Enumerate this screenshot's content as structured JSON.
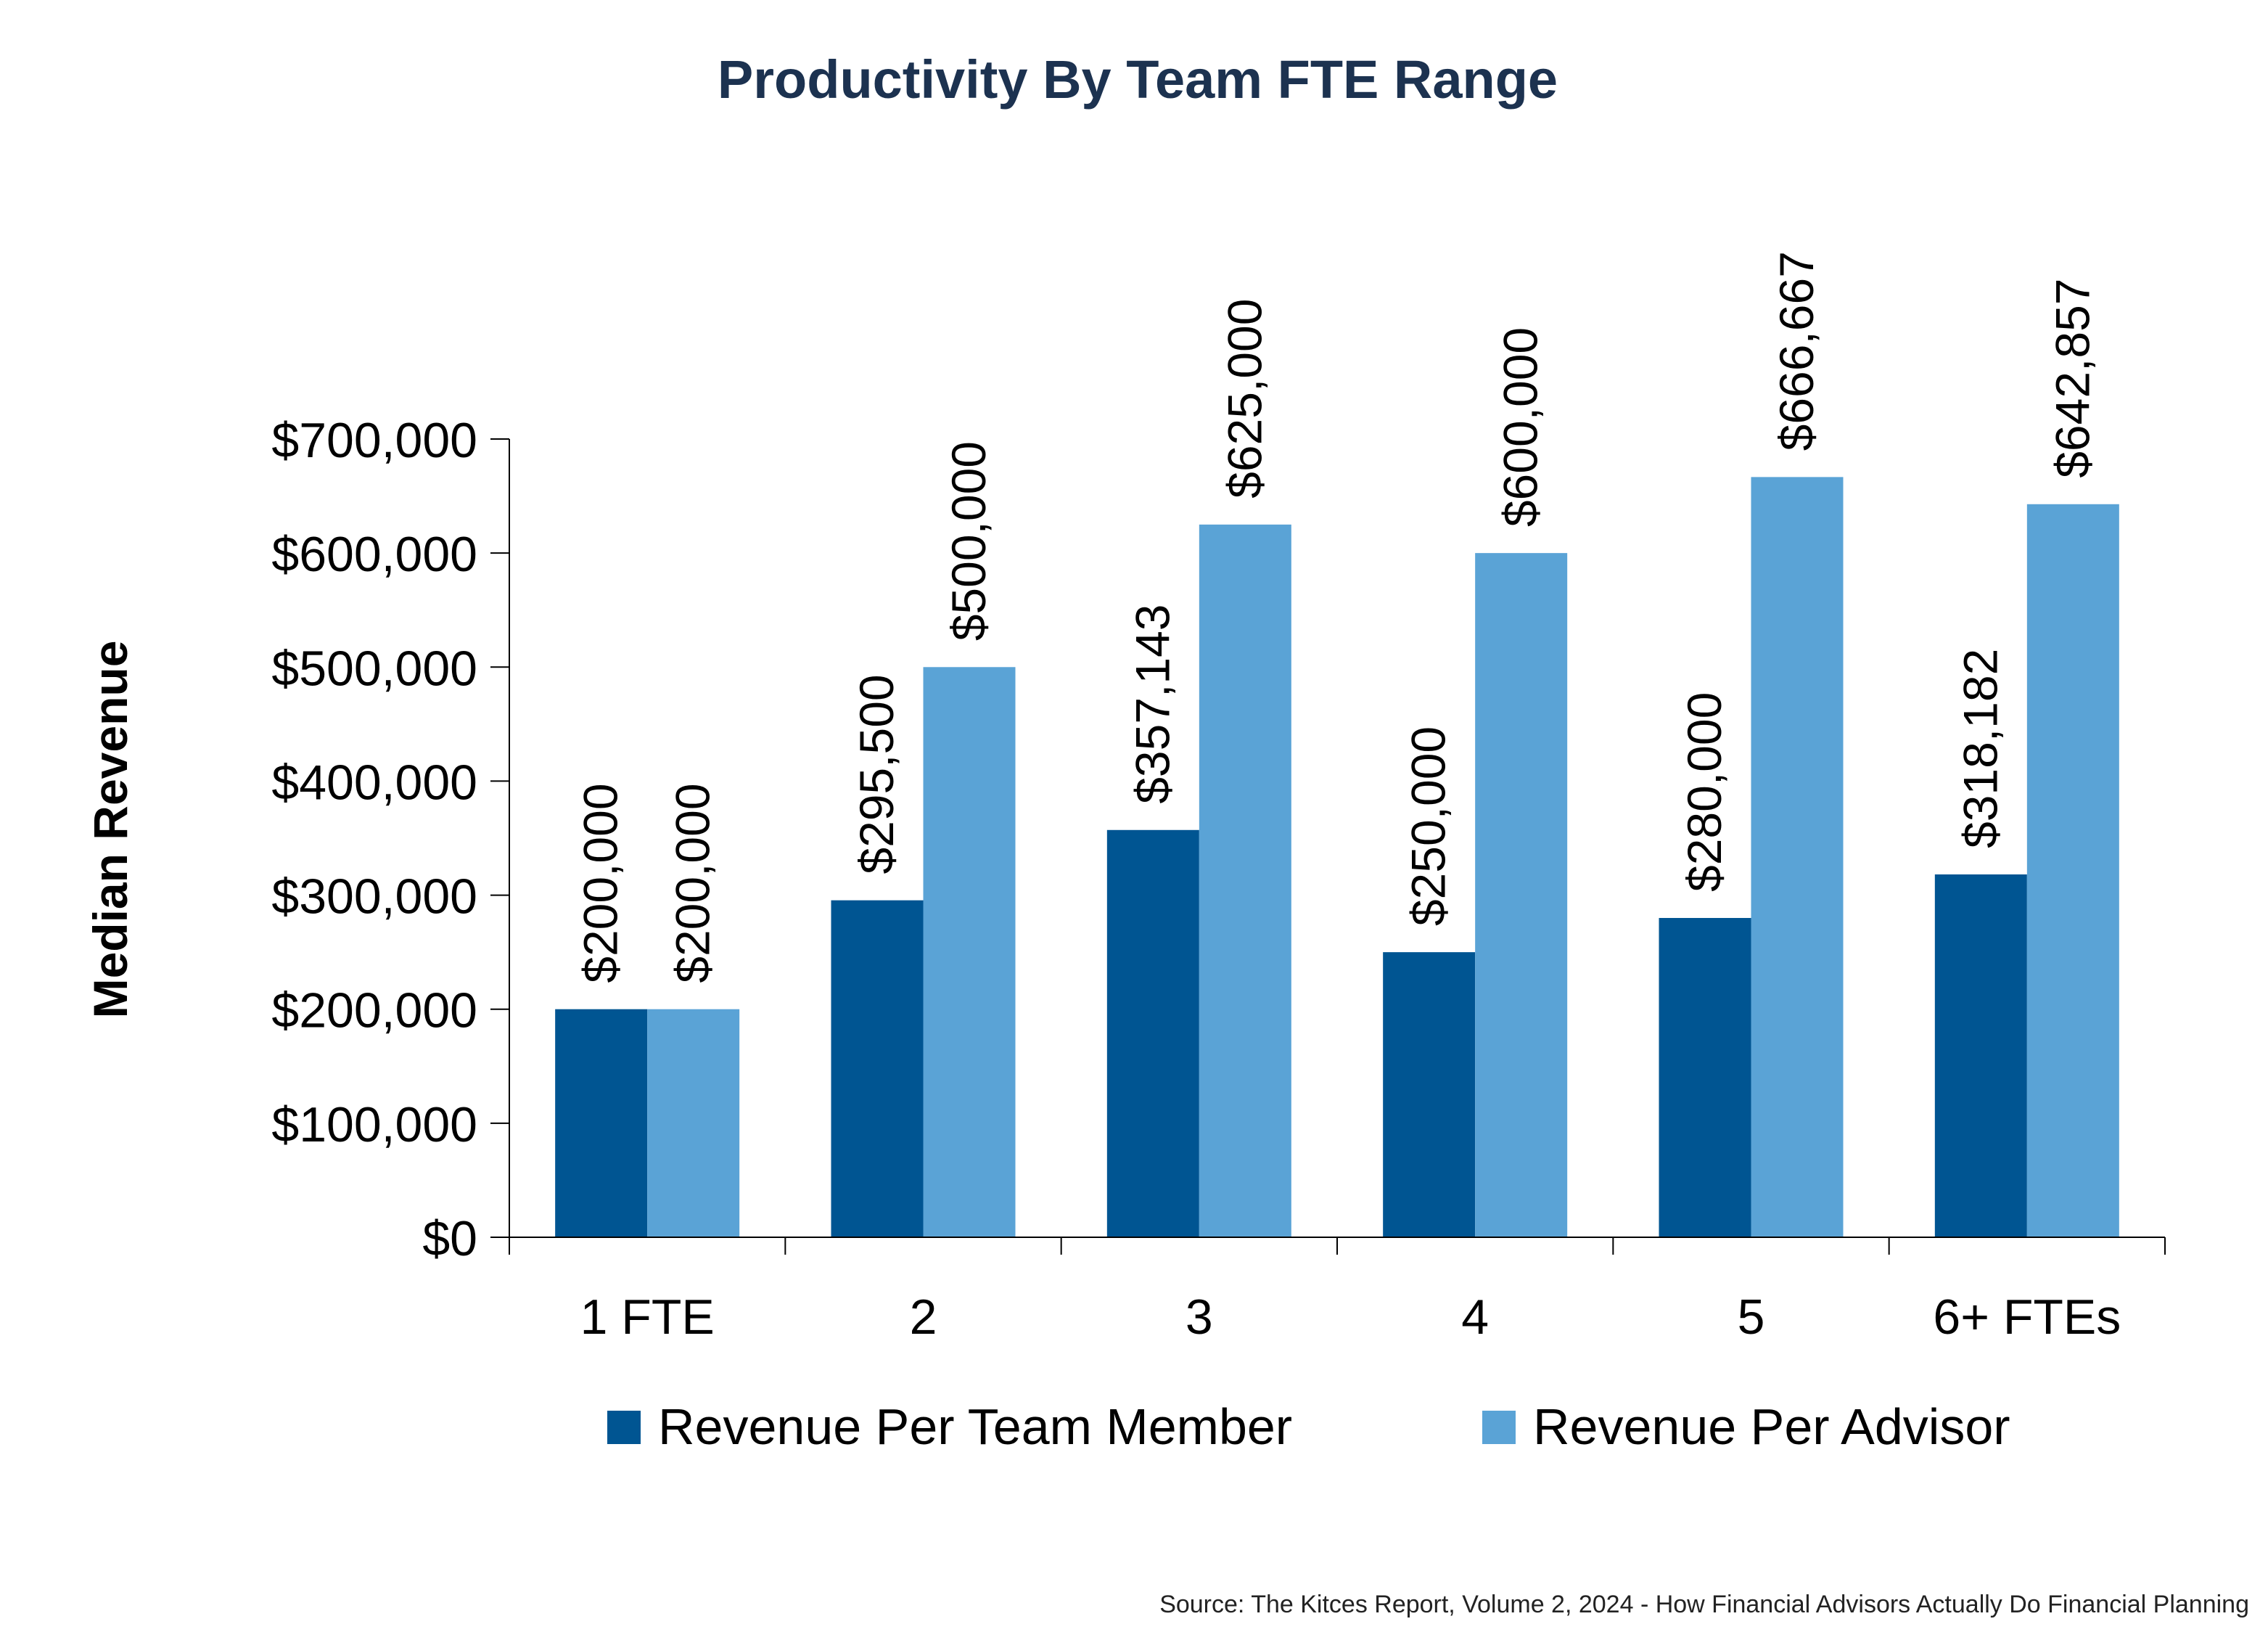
{
  "chart_data": {
    "type": "bar",
    "title": "Productivity By Team FTE Range",
    "ylabel": "Median Revenue",
    "xlabel": "",
    "categories": [
      "1 FTE",
      "2",
      "3",
      "4",
      "5",
      "6+ FTEs"
    ],
    "series": [
      {
        "name": "Revenue Per Team Member",
        "color": "#005592",
        "values": [
          200000,
          295500,
          357143,
          250000,
          280000,
          318182
        ],
        "labels": [
          "$200,000",
          "$295,500",
          "$357,143",
          "$250,000",
          "$280,000",
          "$318,182"
        ]
      },
      {
        "name": "Revenue Per Advisor",
        "color": "#5aa3d6",
        "values": [
          200000,
          500000,
          625000,
          600000,
          666667,
          642857
        ],
        "labels": [
          "$200,000",
          "$500,000",
          "$625,000",
          "$600,000",
          "$666,667",
          "$642,857"
        ]
      }
    ],
    "ylim": [
      0,
      700000
    ],
    "yticks": [
      0,
      100000,
      200000,
      300000,
      400000,
      500000,
      600000,
      700000
    ],
    "ytick_labels": [
      "$0",
      "$100,000",
      "$200,000",
      "$300,000",
      "$400,000",
      "$500,000",
      "$600,000",
      "$700,000"
    ],
    "grid": false,
    "legend_position": "bottom",
    "data_label_orientation": "vertical",
    "title_color": "#1c3250"
  },
  "source": "Source: The Kitces Report, Volume 2, 2024 - How Financial Advisors Actually Do Financial Planning"
}
